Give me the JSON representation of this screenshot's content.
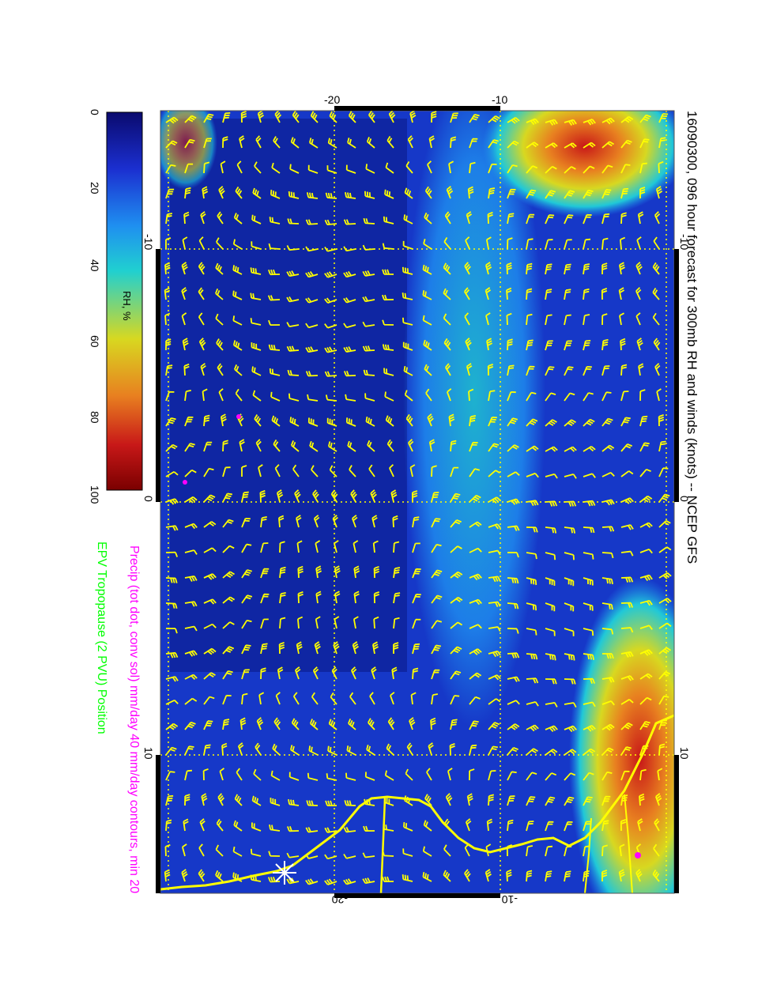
{
  "title": "16090300, 096 hour forecast for 300mb RH and winds (knots) -- NCEP GFS",
  "legend_precip": "Precip (tot dot, conv sol) mm/day 40 mm/day contours, min 20",
  "legend_tropopause": "EPV Tropopause (2 PVU) Position",
  "colorbar": {
    "label": "RH, %",
    "ticks": [
      "0",
      "20",
      "40",
      "60",
      "80",
      "100"
    ],
    "colors": [
      "#0a0a6e",
      "#1b2fd0",
      "#1f8ff0",
      "#20d0d0",
      "#d8d820",
      "#e88020",
      "#c81818",
      "#7a0000"
    ]
  },
  "axes": {
    "top_ticks": [
      "-20",
      "-10"
    ],
    "bottom_ticks": [
      "-20",
      "-10"
    ],
    "left_ticks": [
      "-10",
      "0",
      "10"
    ],
    "right_ticks": [
      "-10",
      "0",
      "10"
    ]
  },
  "colors": {
    "barb": "#ffff00",
    "coast": "#ffff00",
    "precip": "#ff00ff",
    "tropopause": "#00ff00",
    "grid": "#ffff00"
  }
}
